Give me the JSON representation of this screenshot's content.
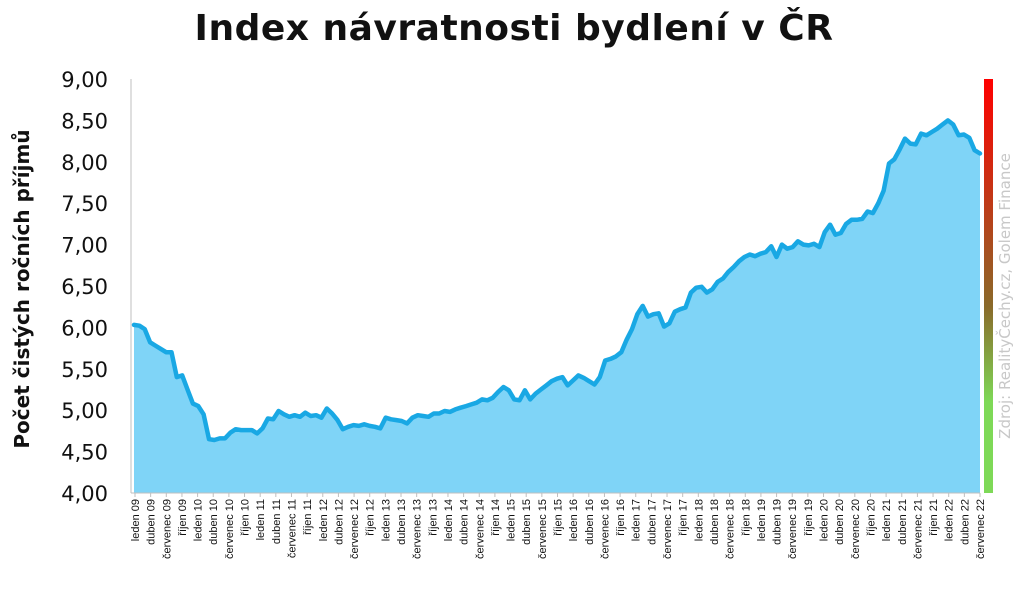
{
  "chart_data": {
    "type": "area",
    "title": "Index návratnosti bydlení v ČR",
    "ylabel": "Počet čistých ročních příjmů",
    "xlabel": "",
    "source": "Zdroj: RealityČechy.cz, Golem Finance",
    "ylim": [
      4.0,
      9.0
    ],
    "y_ticks": [
      "4,00",
      "4,50",
      "5,00",
      "5,50",
      "6,00",
      "6,50",
      "7,00",
      "7,50",
      "8,00",
      "8,50",
      "9,00"
    ],
    "x_tick_labels": [
      "leden 09",
      "duben 09",
      "červenec 09",
      "říjen 09",
      "leden 10",
      "duben 10",
      "červenec 10",
      "říjen 10",
      "leden 11",
      "duben 11",
      "červenec 11",
      "říjen 11",
      "leden 12",
      "duben 12",
      "červenec 12",
      "říjen 12",
      "leden 13",
      "duben 13",
      "červenec 13",
      "říjen 13",
      "leden 14",
      "duben 14",
      "červenec 14",
      "říjen 14",
      "leden 15",
      "duben 15",
      "červenec 15",
      "říjen 15",
      "leden 16",
      "duben 16",
      "červenec 16",
      "říjen 16",
      "leden 17",
      "duben 17",
      "červenec 17",
      "říjen 17",
      "leden 18",
      "duben 18",
      "červenec 18",
      "říjen 18",
      "leden 19",
      "duben 19",
      "červenec 19",
      "říjen 19",
      "leden 20",
      "duben 20",
      "červenec 20",
      "říjen 20",
      "leden 21",
      "duben 21",
      "červenec 21",
      "říjen 21",
      "leden 22",
      "duben 22",
      "červenec 22"
    ],
    "values": [
      6.03,
      6.02,
      5.98,
      5.82,
      5.78,
      5.74,
      5.7,
      5.7,
      5.4,
      5.42,
      5.25,
      5.08,
      5.05,
      4.95,
      4.65,
      4.64,
      4.66,
      4.66,
      4.73,
      4.77,
      4.76,
      4.76,
      4.76,
      4.72,
      4.78,
      4.9,
      4.89,
      4.99,
      4.95,
      4.92,
      4.94,
      4.92,
      4.97,
      4.93,
      4.94,
      4.91,
      5.02,
      4.96,
      4.88,
      4.77,
      4.8,
      4.82,
      4.81,
      4.83,
      4.81,
      4.8,
      4.78,
      4.91,
      4.89,
      4.88,
      4.87,
      4.84,
      4.91,
      4.94,
      4.93,
      4.92,
      4.96,
      4.96,
      4.99,
      4.98,
      5.01,
      5.03,
      5.05,
      5.07,
      5.09,
      5.13,
      5.12,
      5.15,
      5.22,
      5.28,
      5.24,
      5.13,
      5.12,
      5.24,
      5.13,
      5.2,
      5.25,
      5.3,
      5.35,
      5.38,
      5.4,
      5.3,
      5.36,
      5.42,
      5.39,
      5.35,
      5.31,
      5.4,
      5.6,
      5.62,
      5.65,
      5.7,
      5.85,
      5.98,
      6.16,
      6.26,
      6.13,
      6.16,
      6.17,
      6.01,
      6.05,
      6.19,
      6.22,
      6.24,
      6.42,
      6.48,
      6.49,
      6.42,
      6.46,
      6.55,
      6.59,
      6.67,
      6.73,
      6.8,
      6.85,
      6.88,
      6.86,
      6.89,
      6.91,
      6.98,
      6.85,
      7.0,
      6.95,
      6.97,
      7.04,
      7.0,
      6.99,
      7.01,
      6.97,
      7.15,
      7.24,
      7.12,
      7.14,
      7.25,
      7.3,
      7.3,
      7.31,
      7.4,
      7.38,
      7.5,
      7.65,
      7.98,
      8.03,
      8.15,
      8.28,
      8.22,
      8.21,
      8.34,
      8.32,
      8.36,
      8.4,
      8.45,
      8.5,
      8.45,
      8.32,
      8.33,
      8.29,
      8.14,
      8.1
    ],
    "colors": {
      "area_fill": "#7fd4f7",
      "line": "#19a8e4",
      "scale_bar_top": "#ff0000",
      "scale_bar_bottom": "#7ed957"
    },
    "grid": false,
    "legend": "none"
  }
}
